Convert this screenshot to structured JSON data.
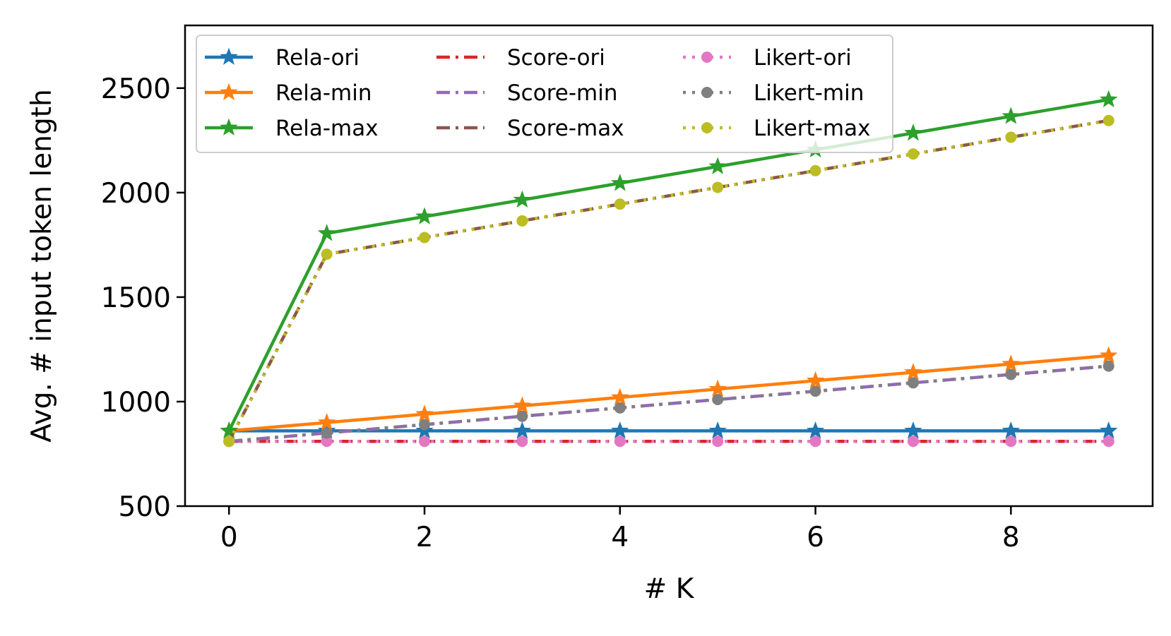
{
  "chart_data": {
    "type": "line",
    "title": "",
    "xlabel": "# K",
    "ylabel": "Avg. # input token length",
    "xlim": [
      -0.45,
      9.45
    ],
    "ylim": [
      500,
      2800
    ],
    "x_ticks": [
      "0",
      "2",
      "4",
      "6",
      "8"
    ],
    "y_ticks": [
      "500",
      "1000",
      "1500",
      "2000",
      "2500"
    ],
    "grid": false,
    "legend_position": "upper-left",
    "legend_columns": 3,
    "x": [
      0,
      1,
      2,
      3,
      4,
      5,
      6,
      7,
      8,
      9
    ],
    "series": [
      {
        "name": "Rela-ori",
        "color": "#1f77b4",
        "linestyle": "solid",
        "marker": "star",
        "values": [
          860,
          860,
          860,
          860,
          860,
          860,
          860,
          860,
          860,
          860
        ]
      },
      {
        "name": "Rela-min",
        "color": "#ff7f0e",
        "linestyle": "solid",
        "marker": "star",
        "values": [
          860,
          900,
          940,
          980,
          1020,
          1060,
          1100,
          1140,
          1180,
          1220
        ]
      },
      {
        "name": "Rela-max",
        "color": "#2ca02c",
        "linestyle": "solid",
        "marker": "star",
        "values": [
          860,
          1805,
          1885,
          1965,
          2045,
          2125,
          2205,
          2285,
          2365,
          2445
        ]
      },
      {
        "name": "Score-ori",
        "color": "#d62728",
        "linestyle": "dashdot",
        "marker": "none",
        "values": [
          810,
          810,
          810,
          810,
          810,
          810,
          810,
          810,
          810,
          810
        ]
      },
      {
        "name": "Score-min",
        "color": "#9467bd",
        "linestyle": "dashdot",
        "marker": "none",
        "values": [
          810,
          850,
          890,
          930,
          970,
          1010,
          1050,
          1090,
          1130,
          1170
        ]
      },
      {
        "name": "Score-max",
        "color": "#8c564b",
        "linestyle": "dashdot",
        "marker": "none",
        "values": [
          810,
          1705,
          1785,
          1865,
          1945,
          2025,
          2105,
          2185,
          2265,
          2345
        ]
      },
      {
        "name": "Likert-ori",
        "color": "#e377c2",
        "linestyle": "dotted",
        "marker": "circle",
        "values": [
          810,
          810,
          810,
          810,
          810,
          810,
          810,
          810,
          810,
          810
        ]
      },
      {
        "name": "Likert-min",
        "color": "#7f7f7f",
        "linestyle": "dotted",
        "marker": "circle",
        "values": [
          810,
          850,
          890,
          930,
          970,
          1010,
          1050,
          1090,
          1130,
          1170
        ]
      },
      {
        "name": "Likert-max",
        "color": "#bcbd22",
        "linestyle": "dotted",
        "marker": "circle",
        "values": [
          810,
          1705,
          1785,
          1865,
          1945,
          2025,
          2105,
          2185,
          2265,
          2345
        ]
      }
    ]
  }
}
